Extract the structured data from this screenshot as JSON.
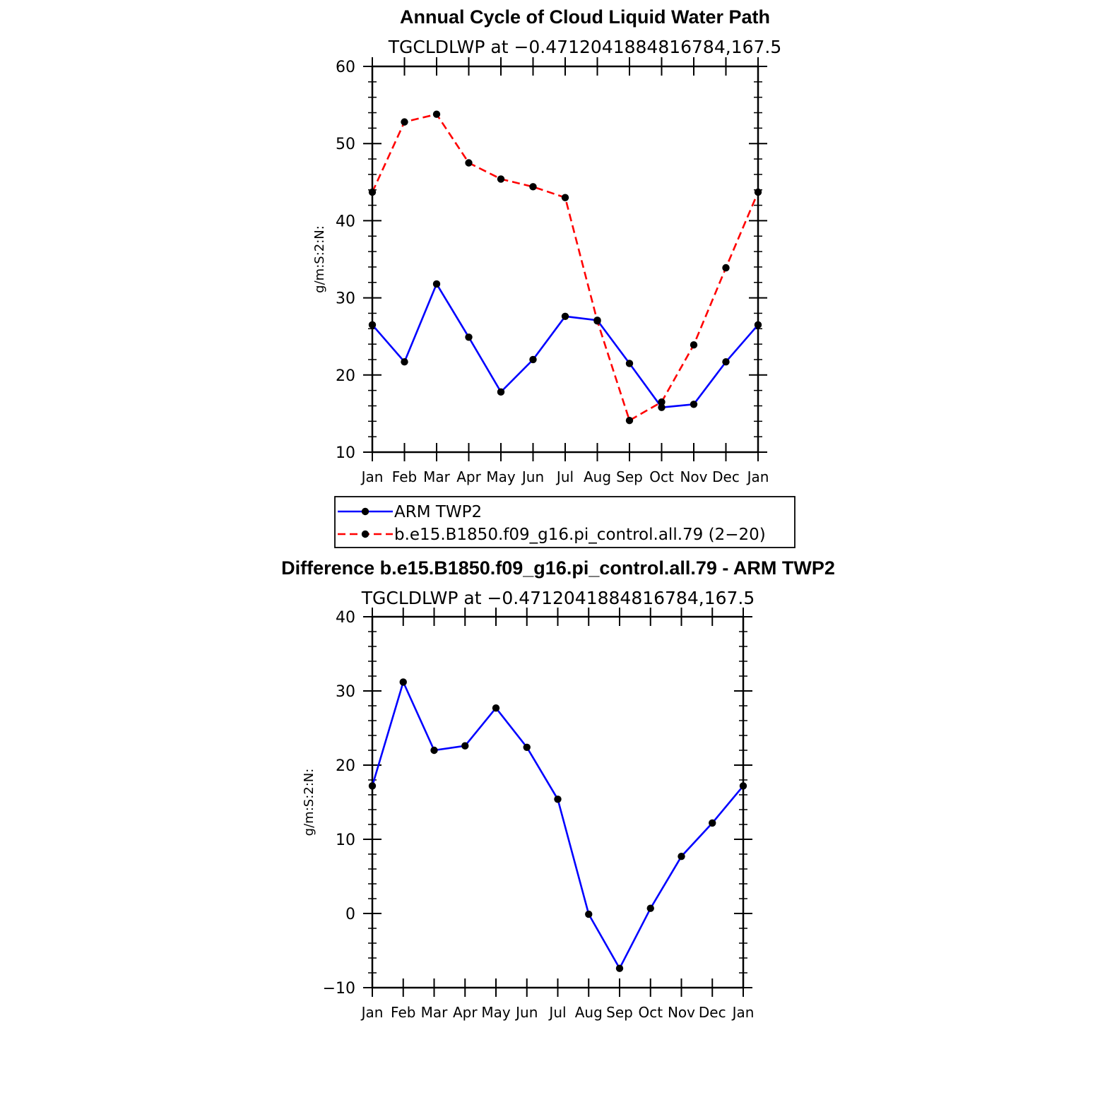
{
  "colors": {
    "obs": "#0000ff",
    "model": "#ff0000",
    "marker": "#000000"
  },
  "chart_data": [
    {
      "type": "line",
      "title": "Annual Cycle of Cloud Liquid Water Path",
      "subtitle": "TGCLDLWP at −0.4712041884816784,167.5",
      "ylabel": "g/m:S:2:N:",
      "ylim": [
        10,
        60
      ],
      "yticks": [
        {
          "value": 10,
          "label": "10"
        },
        {
          "value": 20,
          "label": "20"
        },
        {
          "value": 30,
          "label": "30"
        },
        {
          "value": 40,
          "label": "40"
        },
        {
          "value": 50,
          "label": "50"
        },
        {
          "value": 60,
          "label": "60"
        }
      ],
      "categories": [
        "Jan",
        "Feb",
        "Mar",
        "Apr",
        "May",
        "Jun",
        "Jul",
        "Aug",
        "Sep",
        "Oct",
        "Nov",
        "Dec",
        "Jan"
      ],
      "series": [
        {
          "name": "ARM TWP2",
          "style": "solid",
          "color": "#0000ff",
          "values": [
            26.5,
            21.7,
            31.8,
            24.9,
            17.8,
            22.0,
            27.6,
            27.1,
            21.5,
            15.8,
            16.2,
            21.7,
            26.5
          ]
        },
        {
          "name": "b.e15.B1850.f09_g16.pi_control.all.79 (2−20)",
          "style": "dashed",
          "color": "#ff0000",
          "values": [
            43.7,
            52.8,
            53.8,
            47.5,
            45.4,
            44.4,
            43.0,
            27.0,
            14.1,
            16.5,
            23.9,
            33.9,
            43.7
          ]
        }
      ],
      "legend": {
        "position": "below",
        "entries": [
          "ARM TWP2",
          "b.e15.B1850.f09_g16.pi_control.all.79 (2−20)"
        ]
      }
    },
    {
      "type": "line",
      "title": "Difference b.e15.B1850.f09_g16.pi_control.all.79 - ARM TWP2",
      "subtitle": "TGCLDLWP at −0.4712041884816784,167.5",
      "ylabel": "g/m:S:2:N:",
      "ylim": [
        -10,
        40
      ],
      "yticks": [
        {
          "value": -10,
          "label": "−10"
        },
        {
          "value": 0,
          "label": "0"
        },
        {
          "value": 10,
          "label": "10"
        },
        {
          "value": 20,
          "label": "20"
        },
        {
          "value": 30,
          "label": "30"
        },
        {
          "value": 40,
          "label": "40"
        }
      ],
      "categories": [
        "Jan",
        "Feb",
        "Mar",
        "Apr",
        "May",
        "Jun",
        "Jul",
        "Aug",
        "Sep",
        "Oct",
        "Nov",
        "Dec",
        "Jan"
      ],
      "series": [
        {
          "name": "Difference",
          "style": "solid",
          "color": "#0000ff",
          "values": [
            17.2,
            31.2,
            22.0,
            22.6,
            27.7,
            22.4,
            15.4,
            -0.1,
            -7.4,
            0.7,
            7.7,
            12.2,
            17.2
          ]
        }
      ]
    }
  ]
}
